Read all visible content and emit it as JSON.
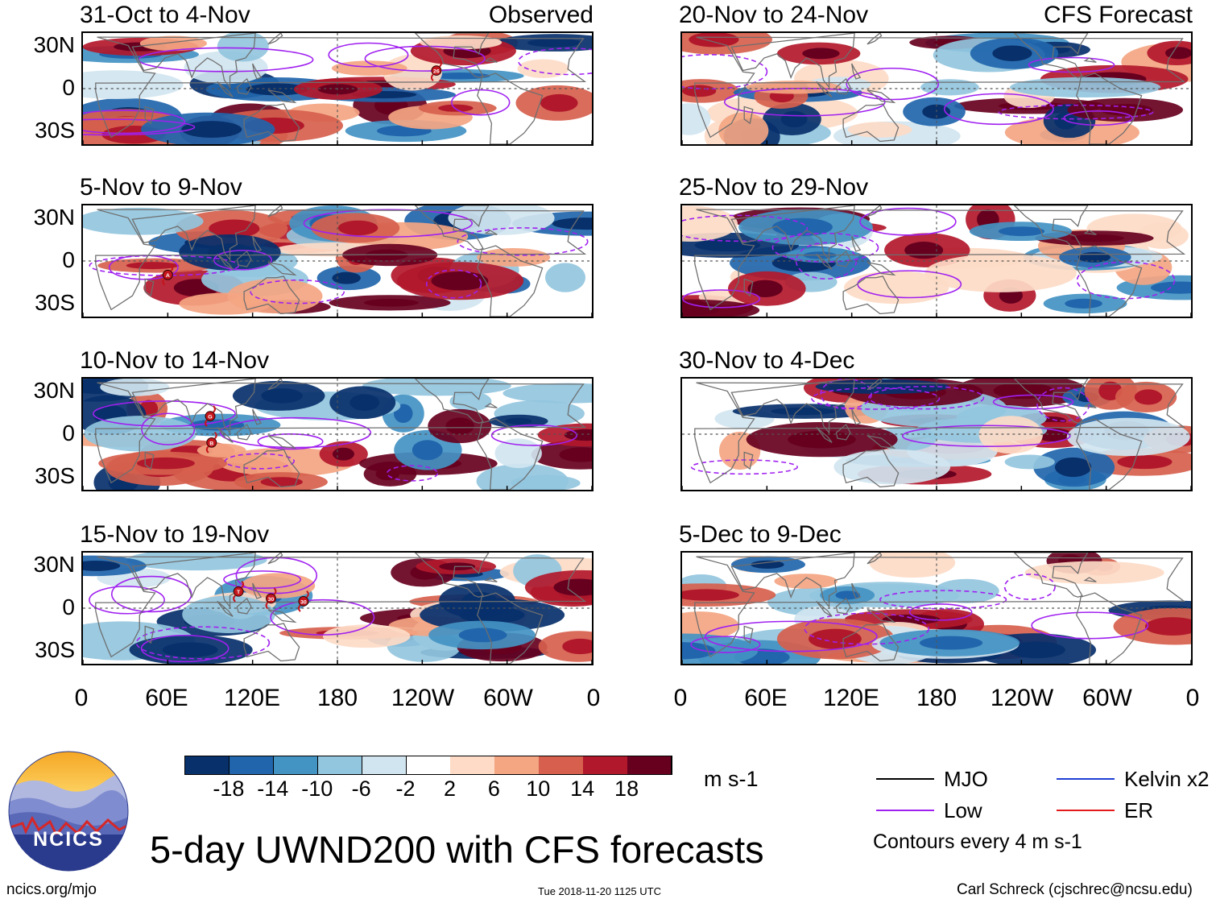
{
  "chart_data": {
    "type": "heatmap",
    "title": "5-day UWND200 with CFS forecasts",
    "variable": "UWND200",
    "units": "m s-1",
    "contour_note": "Contours every 4 m s-1",
    "observed_label": "Observed",
    "forecast_label": "CFS Forecast",
    "lat_ticks": [
      "30N",
      "0",
      "30S"
    ],
    "lon_ticks": [
      "0",
      "60E",
      "120E",
      "180",
      "120W",
      "60W",
      "0"
    ],
    "colorbar": {
      "ticks": [
        "-18",
        "-14",
        "-10",
        "-6",
        "-2",
        "2",
        "6",
        "10",
        "14",
        "18"
      ],
      "colors": [
        "#08306b",
        "#2166ac",
        "#4393c3",
        "#92c5de",
        "#d1e5f0",
        "#ffffff",
        "#fddbc7",
        "#f4a582",
        "#d6604d",
        "#b2182b",
        "#67001f"
      ]
    },
    "panels": [
      {
        "period": "31-Oct to 4-Nov",
        "source": "observed"
      },
      {
        "period": "5-Nov to 9-Nov",
        "source": "observed"
      },
      {
        "period": "10-Nov to 14-Nov",
        "source": "observed"
      },
      {
        "period": "15-Nov to 19-Nov",
        "source": "observed"
      },
      {
        "period": "20-Nov to 24-Nov",
        "source": "forecast"
      },
      {
        "period": "25-Nov to 29-Nov",
        "source": "forecast"
      },
      {
        "period": "30-Nov to 4-Dec",
        "source": "forecast"
      },
      {
        "period": "5-Dec to 9-Dec",
        "source": "forecast"
      }
    ],
    "storm_markers": [
      {
        "panel": 0,
        "label": "26",
        "lon": 250,
        "lat": 13
      },
      {
        "panel": 1,
        "label": "A",
        "lon": 60,
        "lat": -10
      },
      {
        "panel": 2,
        "label": "G",
        "lon": 90,
        "lat": 13
      },
      {
        "panel": 2,
        "label": "B",
        "lon": 91,
        "lat": -6
      },
      {
        "panel": 3,
        "label": "T",
        "lon": 110,
        "lat": 12
      },
      {
        "panel": 3,
        "label": "30",
        "lon": 133,
        "lat": 7
      },
      {
        "panel": 3,
        "label": "30",
        "lon": 156,
        "lat": 5
      }
    ],
    "legend": [
      {
        "label": "MJO",
        "color": "#000000"
      },
      {
        "label": "Low",
        "color": "#a020f0"
      },
      {
        "label": "Kelvin x2",
        "color": "#1f3fd6"
      },
      {
        "label": "ER",
        "color": "#e31a1c"
      }
    ]
  },
  "footer": {
    "logo_text": "NCICS",
    "site": "ncics.org/mjo",
    "timestamp": "Tue 2018-11-20 1125 UTC",
    "author": "Carl Schreck (cjschrec@ncsu.edu)"
  }
}
